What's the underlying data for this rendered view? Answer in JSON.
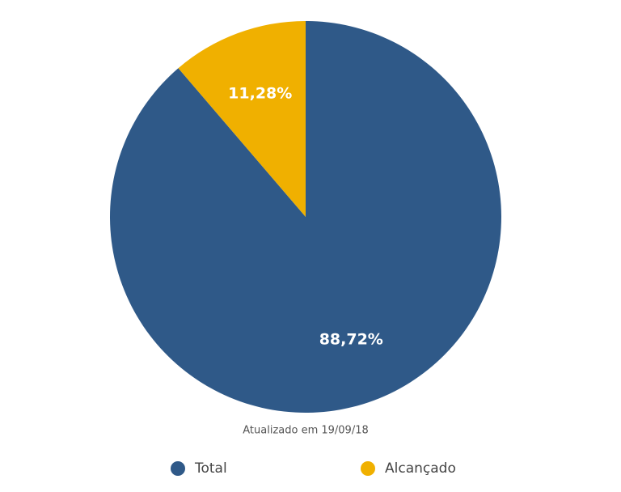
{
  "chart_data": {
    "type": "pie",
    "categories": [
      "Total",
      "Alcançado"
    ],
    "values": [
      88.72,
      11.28
    ],
    "value_labels": [
      "88,72%",
      "11,28%"
    ],
    "colors": [
      "#2f5988",
      "#f0b000"
    ],
    "caption": "Atualizado em 19/09/18",
    "legend": "bottom"
  }
}
